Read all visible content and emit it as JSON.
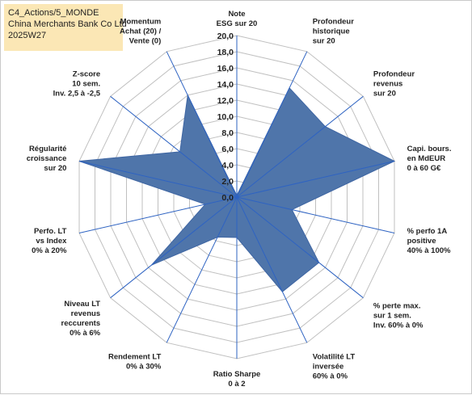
{
  "header": {
    "line1": "C4_Actions/5_MONDE",
    "line2": "China Merchants Bank Co Ltd",
    "line3": "2025W27"
  },
  "chart_data": {
    "type": "radar",
    "rmin": 0,
    "rmax": 20,
    "tick_step": 2,
    "tick_labels": [
      "0,0",
      "2,0",
      "4,0",
      "6,0",
      "8,0",
      "10,0",
      "12,0",
      "14,0",
      "16,0",
      "18,0",
      "20,0"
    ],
    "axes": [
      [
        "Note",
        "ESG sur 20"
      ],
      [
        "Profondeur",
        "historique",
        "sur 20"
      ],
      [
        "Profondeur",
        "revenus",
        "sur 20"
      ],
      [
        "Capi. bours.",
        "en MdEUR",
        "0 à 60 G€"
      ],
      [
        "% perfo 1A",
        "positive",
        "40% à 100%"
      ],
      [
        "% perte max.",
        "sur 1 sem.",
        "Inv. 60% à 0%"
      ],
      [
        "Volatilité LT",
        "inversée",
        "60% à 0%"
      ],
      [
        "Ratio Sharpe",
        "0 à 2"
      ],
      [
        "Rendement LT",
        "0% à 30%"
      ],
      [
        "Niveau LT",
        "revenus",
        "reccurents",
        "0% à 6%"
      ],
      [
        "Perfo. LT",
        "vs Index",
        "0% à 20%"
      ],
      [
        "Régularité",
        "croissance",
        "sur 20"
      ],
      [
        "Z-score",
        "10 sem.",
        "Inv. 2,5 à -2,5"
      ],
      [
        "Momentum",
        "Achat (20) /",
        "Vente (0)"
      ]
    ],
    "series": [
      {
        "values": [
          0.2,
          15,
          14,
          20,
          7,
          13,
          13,
          5,
          5.5,
          13.5,
          4,
          20,
          9,
          14
        ],
        "color": "#4f75aa",
        "edge_color": "#3f66a3"
      }
    ],
    "grid": true,
    "grid_color": "#c0c0c0",
    "spoke_color": "#2e63c2"
  }
}
